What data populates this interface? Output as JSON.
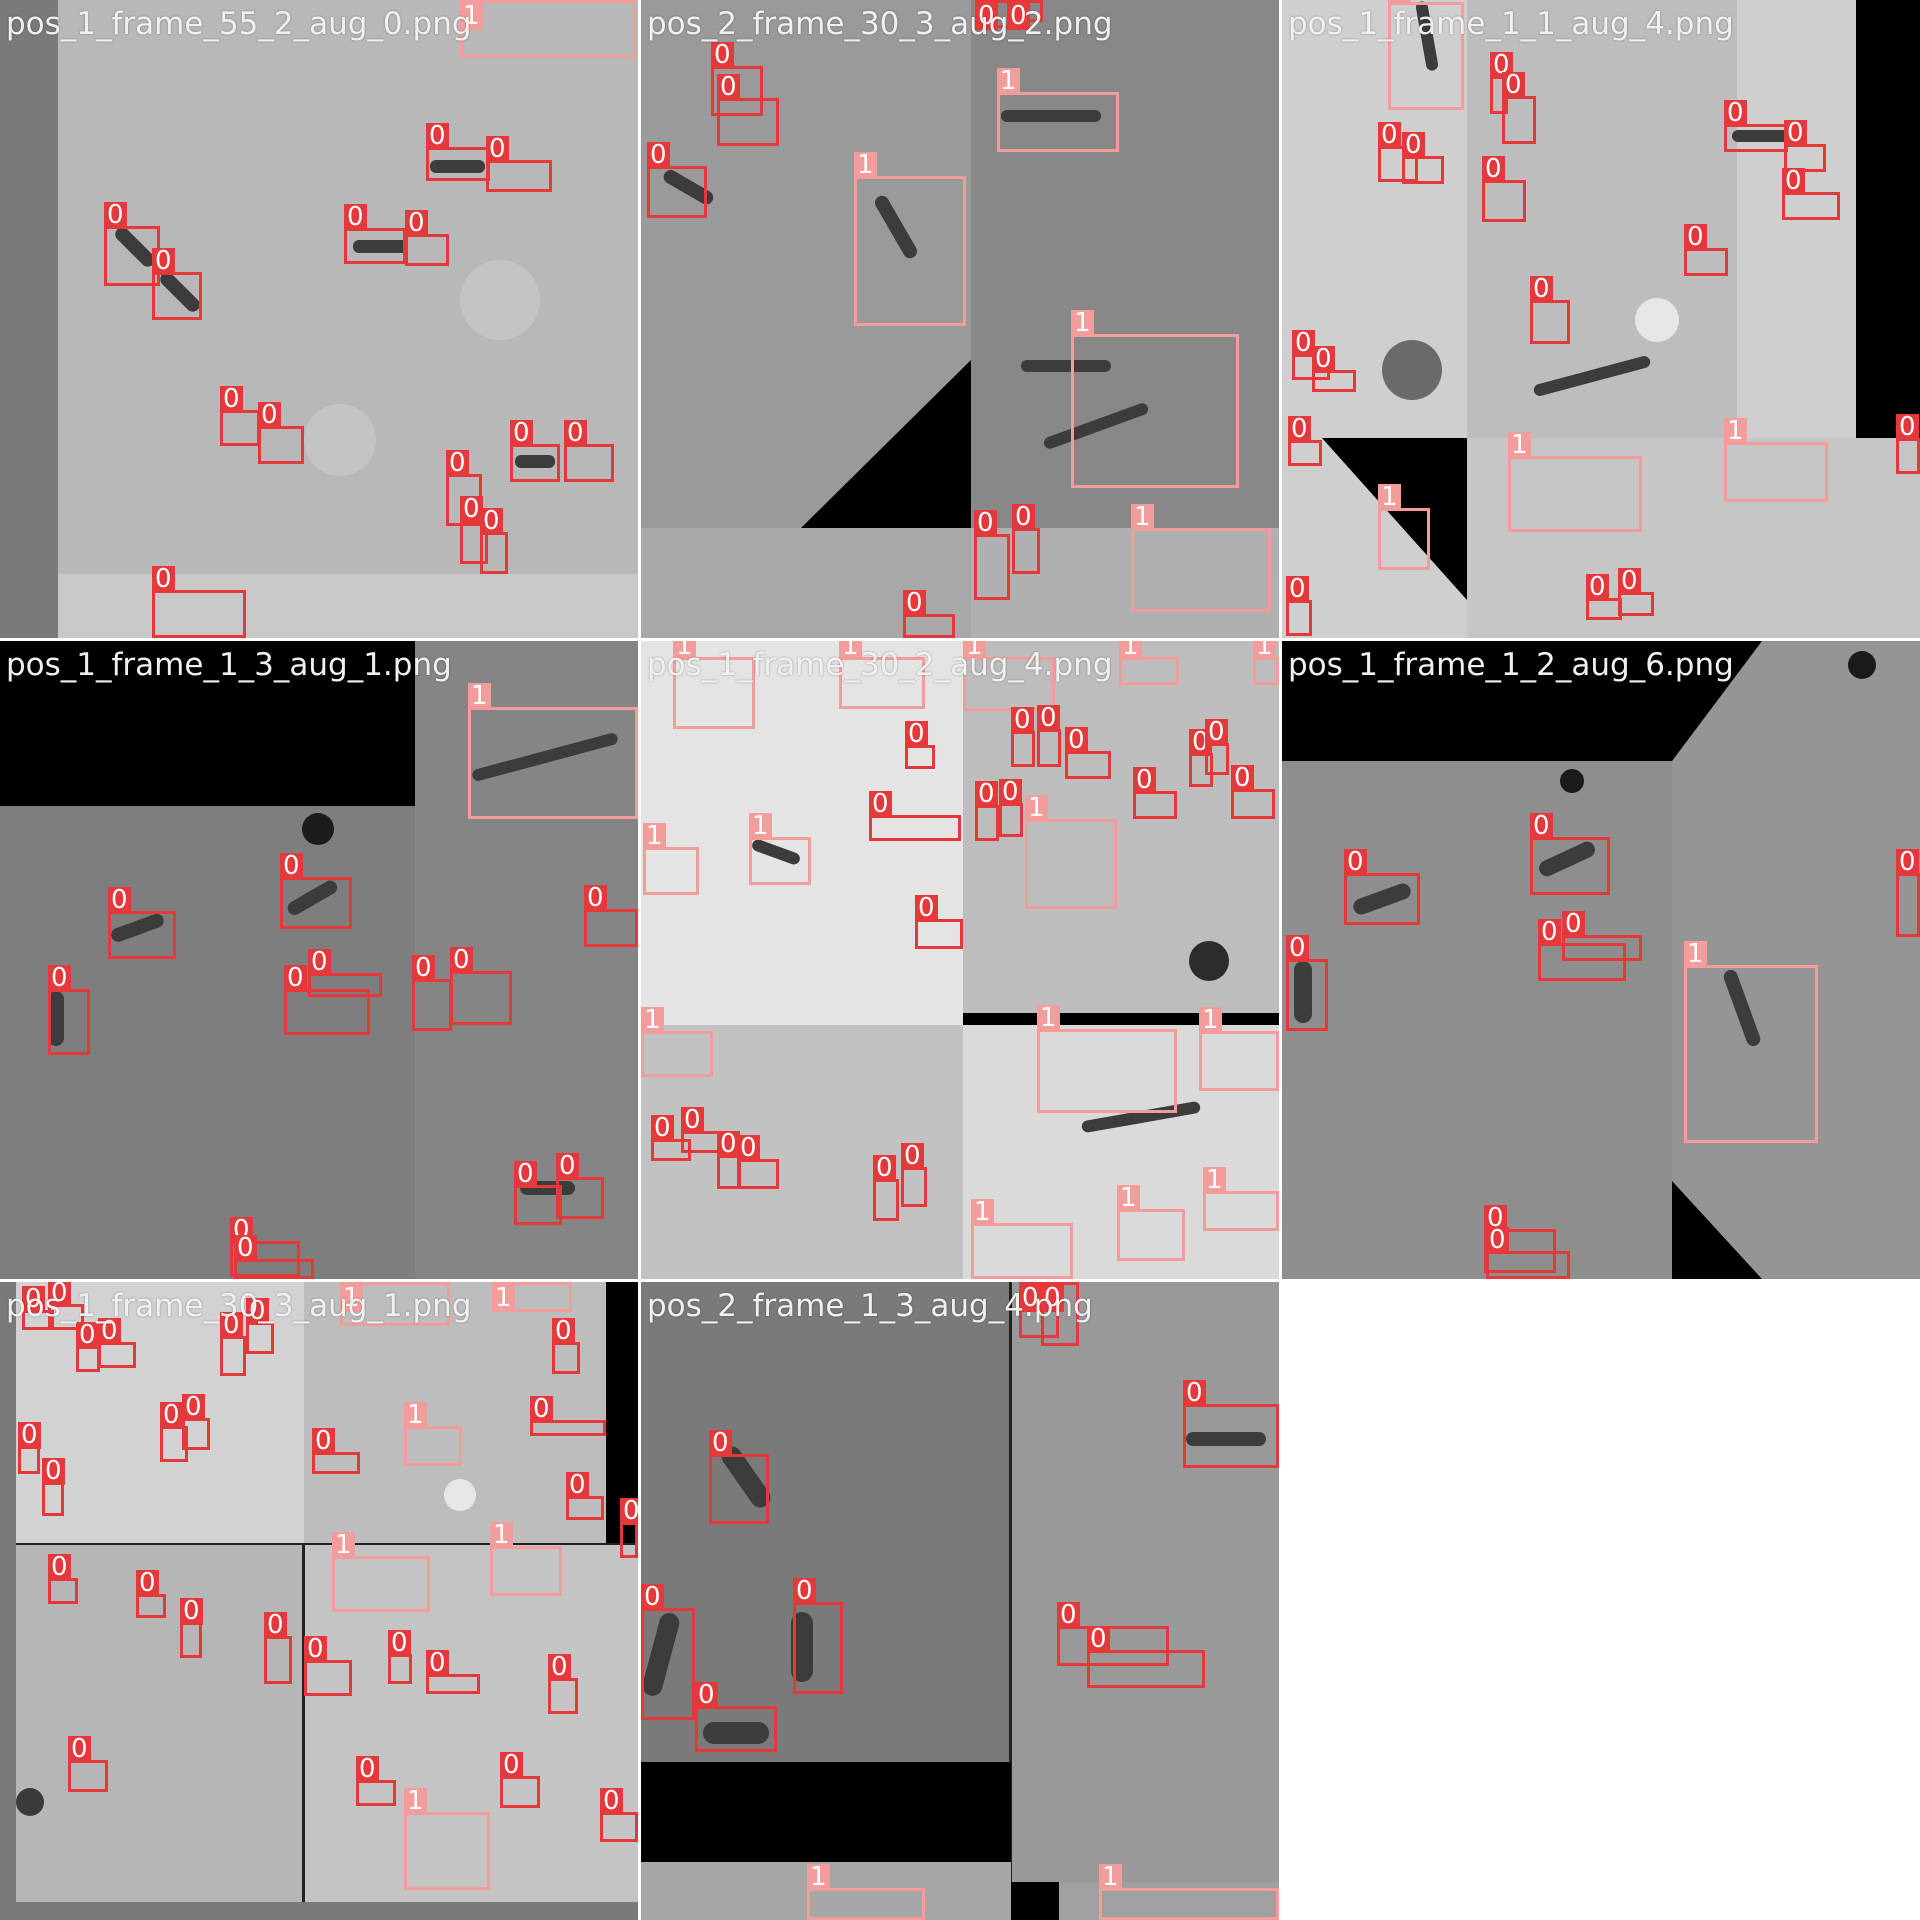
{
  "colors": {
    "class_0": "#e5383b",
    "class_1": "#f39c9c",
    "title_text": "#f0f0f0"
  },
  "tiles": [
    {
      "title": "pos_1_frame_55_2_aug_0.png"
    },
    {
      "title": "pos_2_frame_30_3_aug_2.png"
    },
    {
      "title": "pos_1_frame_1_1_aug_4.png"
    },
    {
      "title": "pos_1_frame_1_3_aug_1.png"
    },
    {
      "title": "pos_1_frame_30_2_aug_4.png"
    },
    {
      "title": "pos_1_frame_1_2_aug_6.png"
    },
    {
      "title": "pos_1_frame_30_3_aug_1.png"
    },
    {
      "title": "pos_2_frame_1_3_aug_4.png"
    }
  ],
  "labels": {
    "class_0": "0",
    "class_1": "1"
  }
}
